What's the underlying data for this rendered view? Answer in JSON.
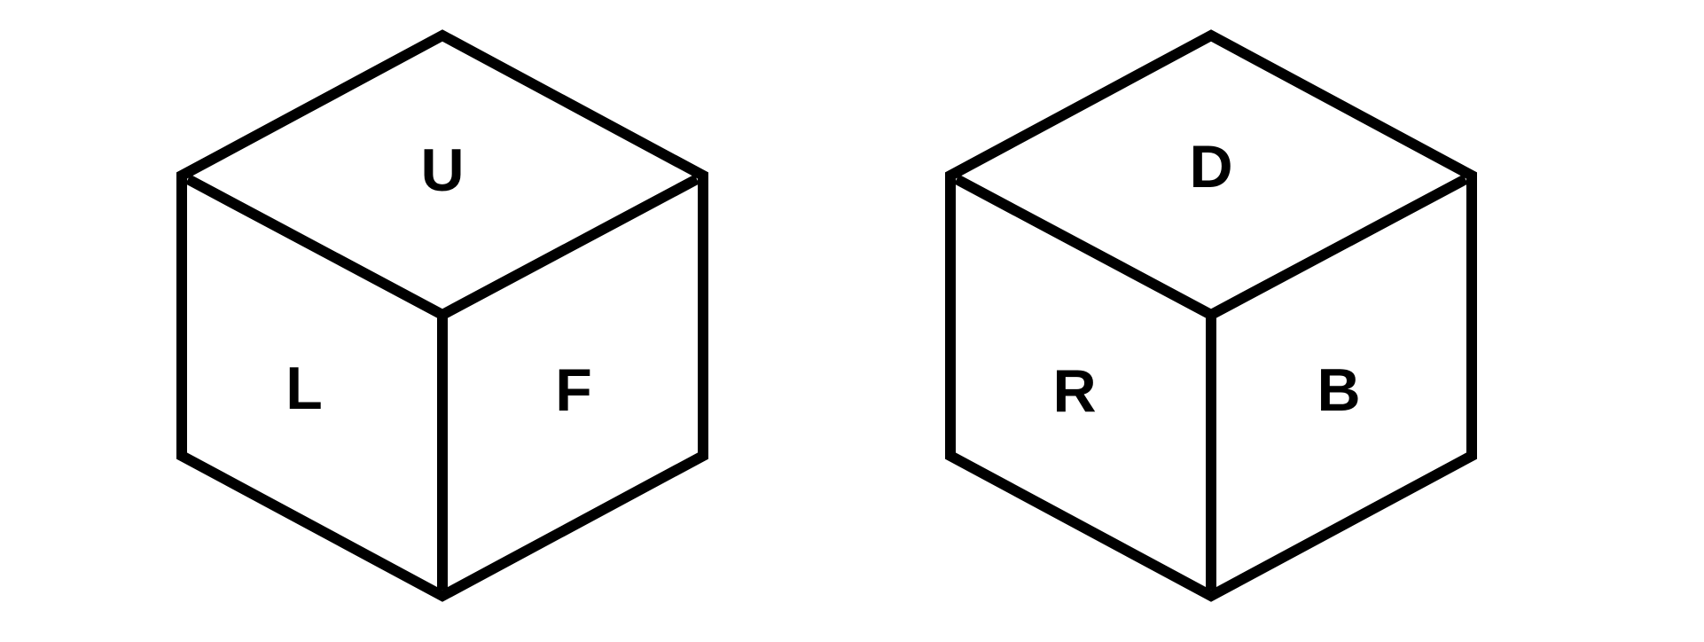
{
  "cubes": [
    {
      "faces": {
        "top": "U",
        "left": "L",
        "right": "F"
      }
    },
    {
      "faces": {
        "top": "D",
        "left": "R",
        "right": "B"
      }
    }
  ],
  "colors": {
    "background": "#ffffff",
    "stroke": "#000000",
    "text": "#000000"
  }
}
